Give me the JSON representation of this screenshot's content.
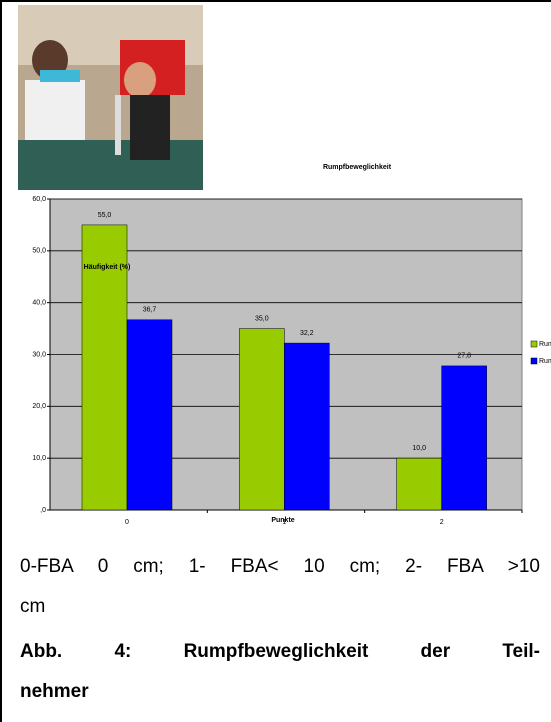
{
  "chart_data": {
    "type": "bar",
    "title": "Rumpfbeweglichkeit",
    "ylabel": "Häufigkeit (%)",
    "xlabel": "Punkte",
    "categories": [
      "0",
      "1",
      "2"
    ],
    "series": [
      {
        "name": "Rum",
        "color": "#99cc00",
        "values": [
          55.0,
          35.0,
          10.0
        ],
        "value_labels": [
          "55,0",
          "35,0",
          "10,0"
        ]
      },
      {
        "name": "Rum",
        "color": "#0000ff",
        "values": [
          36.7,
          32.2,
          27.8
        ],
        "value_labels": [
          "36,7",
          "32,2",
          "27,8"
        ]
      }
    ],
    "ylim": [
      0,
      60
    ],
    "yticks": [
      {
        "value": 0,
        "label": ",0"
      },
      {
        "value": 10,
        "label": "10,0"
      },
      {
        "value": 20,
        "label": "20,0"
      },
      {
        "value": 30,
        "label": "30,0"
      },
      {
        "value": 40,
        "label": "40,0"
      },
      {
        "value": 50,
        "label": "50,0"
      },
      {
        "value": 60,
        "label": "60,0"
      }
    ],
    "grid": true
  },
  "note": [
    "0-FBA 0 cm; 1- FBA< 10 cm; 2- FBA >10",
    "cm"
  ],
  "caption": [
    "Abb. 4: Rumpfbeweglichkeit der Teil-",
    "nehmer"
  ]
}
